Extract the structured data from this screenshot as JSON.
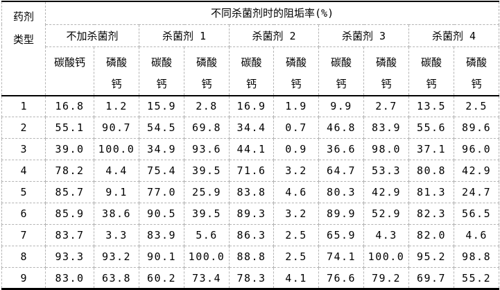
{
  "page": {
    "background": "#ffffff",
    "colors": {
      "text": "#000000",
      "major_rule": "#000000",
      "minor_grid": "#b3b3b3"
    }
  },
  "table": {
    "corner_header": "药剂\n类型",
    "main_header": "不同杀菌剂时的阻垢率(%)",
    "group_headers": [
      "不加杀菌剂",
      "杀菌剂 1",
      "杀菌剂 2",
      "杀菌剂 3",
      "杀菌剂 4"
    ],
    "sub_headers": [
      "碳酸钙",
      "磷酸\n钙",
      "碳酸\n钙",
      "磷酸\n钙",
      "碳酸\n钙",
      "磷酸\n钙",
      "碳酸\n钙",
      "磷酸\n钙",
      "碳酸\n钙",
      "磷酸\n钙"
    ],
    "rows": [
      {
        "id": "1",
        "values": [
          "16.8",
          "1.2",
          "15.9",
          "2.8",
          "16.9",
          "1.9",
          "9.9",
          "2.7",
          "13.5",
          "2.5"
        ]
      },
      {
        "id": "2",
        "values": [
          "55.1",
          "90.7",
          "54.5",
          "69.8",
          "34.4",
          "0.7",
          "46.8",
          "83.9",
          "55.6",
          "89.6"
        ]
      },
      {
        "id": "3",
        "values": [
          "39.0",
          "100.0",
          "34.9",
          "93.6",
          "44.1",
          "0.9",
          "36.6",
          "98.0",
          "37.1",
          "96.0"
        ]
      },
      {
        "id": "4",
        "values": [
          "78.2",
          "4.4",
          "75.4",
          "39.5",
          "71.6",
          "3.2",
          "64.7",
          "53.3",
          "80.8",
          "42.9"
        ]
      },
      {
        "id": "5",
        "values": [
          "85.7",
          "9.1",
          "77.0",
          "25.9",
          "83.8",
          "4.6",
          "80.3",
          "42.9",
          "81.3",
          "24.7"
        ]
      },
      {
        "id": "6",
        "values": [
          "85.9",
          "38.6",
          "90.5",
          "39.5",
          "89.3",
          "3.2",
          "89.9",
          "52.9",
          "82.3",
          "56.5"
        ]
      },
      {
        "id": "7",
        "values": [
          "83.7",
          "3.3",
          "83.9",
          "5.6",
          "86.3",
          "2.5",
          "65.9",
          "4.3",
          "82.0",
          "4.6"
        ]
      },
      {
        "id": "8",
        "values": [
          "93.3",
          "93.2",
          "90.1",
          "100.0",
          "88.8",
          "2.5",
          "74.1",
          "100.0",
          "95.2",
          "98.8"
        ]
      },
      {
        "id": "9",
        "values": [
          "83.0",
          "63.8",
          "60.2",
          "73.4",
          "78.3",
          "4.1",
          "76.6",
          "79.2",
          "69.7",
          "55.2"
        ]
      }
    ]
  }
}
